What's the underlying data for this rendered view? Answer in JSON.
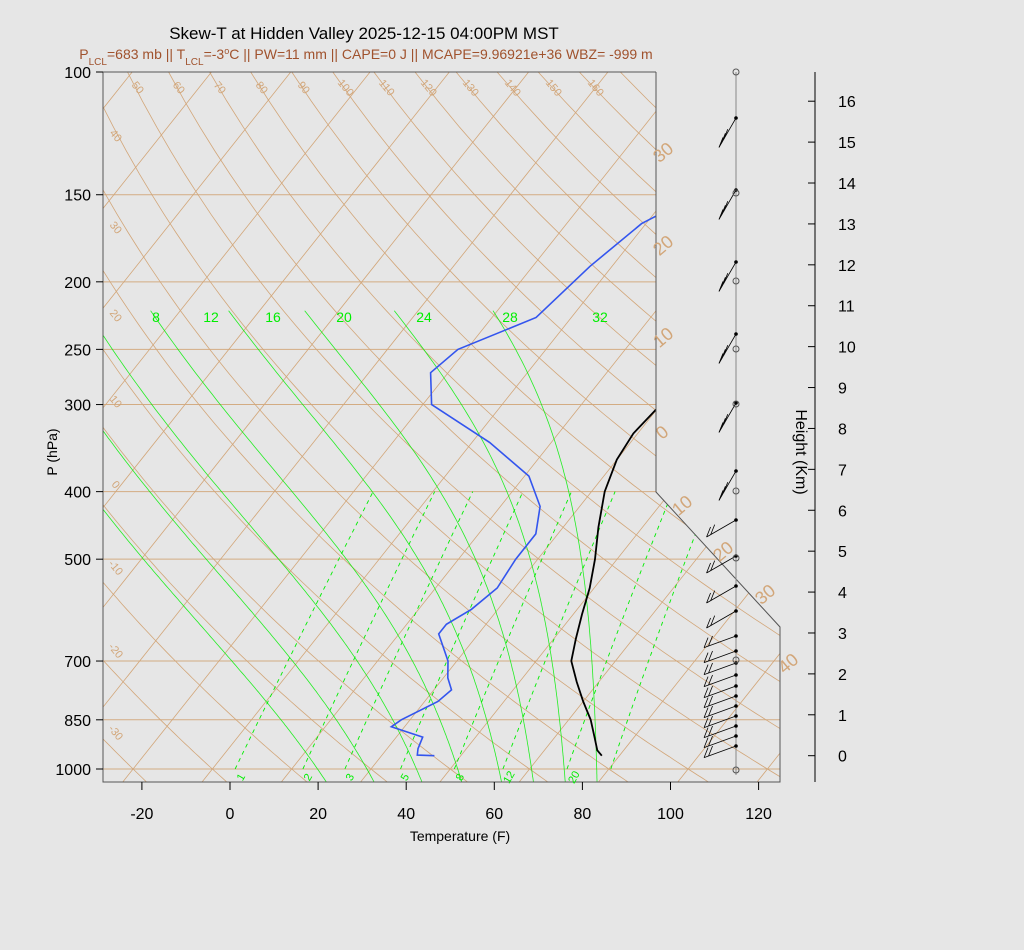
{
  "chart_data": {
    "type": "line",
    "title": "Skew-T at Hidden Valley 2025-12-15 04:00PM MST",
    "subtitle": {
      "plcl": "683 mb",
      "tlcl": "-3",
      "pw": "11 mm",
      "cape": "0 J",
      "mcape": "9.96921e+36",
      "wbz": "-999 m"
    },
    "subtitle_color": "#a0522d",
    "xlabel": "Temperature (F)",
    "ylabel": "P (hPa)",
    "y2label": "Height (Km)",
    "x_ticks": [
      -20,
      0,
      20,
      40,
      60,
      80,
      100,
      120
    ],
    "y_ticks": [
      100,
      150,
      200,
      250,
      300,
      400,
      500,
      700,
      850,
      1000
    ],
    "height_ticks": [
      0,
      1,
      2,
      3,
      4,
      5,
      6,
      7,
      8,
      9,
      10,
      11,
      12,
      13,
      14,
      15,
      16
    ],
    "mixing_ratio_labels": [
      8,
      12,
      16,
      20,
      24,
      28,
      32
    ],
    "bottom_labels": [
      1,
      2,
      3,
      5,
      8,
      12,
      20
    ],
    "isotherm_labels_left": [
      40,
      30,
      20,
      10,
      0,
      -10,
      -20,
      -30
    ],
    "isotherm_labels_top": [
      50,
      60,
      70,
      80,
      90,
      100,
      110,
      120,
      130,
      140,
      150,
      160
    ],
    "isotherm_labels_right": [
      30,
      20,
      10,
      0,
      10,
      20,
      30,
      40
    ],
    "temperature_profile": [
      {
        "p": 957,
        "t": 82
      },
      {
        "p": 940,
        "t": 80
      },
      {
        "p": 900,
        "t": 77
      },
      {
        "p": 850,
        "t": 73
      },
      {
        "p": 800,
        "t": 68
      },
      {
        "p": 750,
        "t": 63
      },
      {
        "p": 700,
        "t": 58
      },
      {
        "p": 650,
        "t": 55
      },
      {
        "p": 600,
        "t": 52
      },
      {
        "p": 550,
        "t": 49
      },
      {
        "p": 500,
        "t": 45
      },
      {
        "p": 450,
        "t": 40
      },
      {
        "p": 400,
        "t": 35
      },
      {
        "p": 360,
        "t": 32
      },
      {
        "p": 330,
        "t": 31
      },
      {
        "p": 300,
        "t": 32
      },
      {
        "p": 250,
        "t": 34
      },
      {
        "p": 200,
        "t": 37
      },
      {
        "p": 160,
        "t": 40
      },
      {
        "p": 130,
        "t": 42
      },
      {
        "p": 100,
        "t": 47
      }
    ],
    "dewpoint_profile": [
      {
        "p": 957,
        "t": 44
      },
      {
        "p": 955,
        "t": 40
      },
      {
        "p": 935,
        "t": 39
      },
      {
        "p": 900,
        "t": 38
      },
      {
        "p": 870,
        "t": 29
      },
      {
        "p": 850,
        "t": 30
      },
      {
        "p": 800,
        "t": 35
      },
      {
        "p": 770,
        "t": 36
      },
      {
        "p": 740,
        "t": 33
      },
      {
        "p": 700,
        "t": 30
      },
      {
        "p": 640,
        "t": 23
      },
      {
        "p": 620,
        "t": 23
      },
      {
        "p": 590,
        "t": 26
      },
      {
        "p": 550,
        "t": 28
      },
      {
        "p": 500,
        "t": 27
      },
      {
        "p": 460,
        "t": 27
      },
      {
        "p": 420,
        "t": 23
      },
      {
        "p": 380,
        "t": 15
      },
      {
        "p": 340,
        "t": 0
      },
      {
        "p": 300,
        "t": -20
      },
      {
        "p": 270,
        "t": -26
      },
      {
        "p": 250,
        "t": -24
      },
      {
        "p": 225,
        "t": -12
      },
      {
        "p": 190,
        "t": -9
      },
      {
        "p": 165,
        "t": -5
      },
      {
        "p": 145,
        "t": 5
      },
      {
        "p": 120,
        "t": 15
      },
      {
        "p": 100,
        "t": 25
      }
    ],
    "grid": true,
    "colors": {
      "temperature": "#000000",
      "dewpoint": "#3355ee",
      "mixing_ratio": "#00ee00",
      "isotherm": "#d2a679",
      "background": "#e6e6e6"
    }
  }
}
